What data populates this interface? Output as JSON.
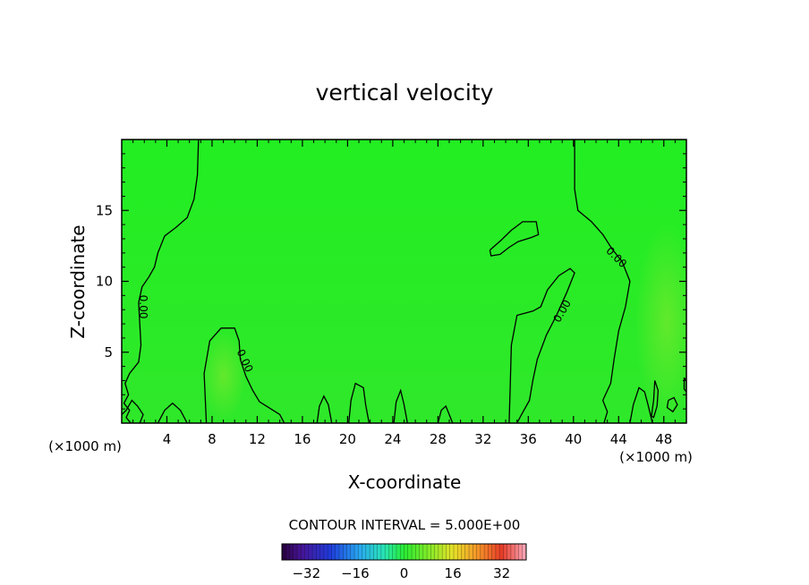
{
  "chart_data": {
    "type": "contour",
    "title": "vertical velocity",
    "xlabel": "X-coordinate",
    "ylabel": "Z-coordinate",
    "x_unit_left": "(×1000 m)",
    "x_unit_right": "(×1000 m)",
    "xlim": [
      0,
      50
    ],
    "ylim": [
      0,
      20
    ],
    "x_ticks": [
      "4",
      "8",
      "12",
      "16",
      "20",
      "24",
      "28",
      "32",
      "36",
      "40",
      "44",
      "48"
    ],
    "y_ticks": [
      "5",
      "10",
      "15"
    ],
    "contour_interval_text": "CONTOUR INTERVAL = 5.000E+00",
    "contour_labels": [
      "0.00",
      "0.00",
      "0.00",
      "0.00"
    ],
    "field_color": "#22ee22",
    "colorbar": {
      "range": [
        -40,
        40
      ],
      "tick_labels": [
        "-32",
        "-16",
        "0",
        "16",
        "32"
      ],
      "tick_values": [
        -32,
        -16,
        0,
        16,
        32
      ]
    },
    "zero_contours": [
      {
        "points": [
          [
            6.8,
            20
          ],
          [
            6.7,
            17.5
          ],
          [
            6.4,
            15.8
          ],
          [
            5.8,
            14.5
          ],
          [
            4.8,
            13.8
          ],
          [
            3.8,
            13.2
          ],
          [
            3.2,
            12
          ],
          [
            2.9,
            11
          ],
          [
            2.4,
            10.3
          ],
          [
            1.8,
            9.6
          ],
          [
            1.5,
            8.5
          ],
          [
            1.6,
            7
          ],
          [
            1.7,
            5.5
          ],
          [
            1.5,
            4.3
          ],
          [
            0.7,
            3.5
          ],
          [
            0.3,
            2.8
          ],
          [
            0.6,
            2.0
          ],
          [
            0.2,
            1.4
          ],
          [
            0.7,
            0.9
          ],
          [
            0.4,
            0.4
          ],
          [
            0.8,
            0
          ]
        ]
      },
      {
        "points": [
          [
            7.5,
            0
          ],
          [
            7.3,
            3.5
          ],
          [
            7.8,
            5.8
          ],
          [
            8.8,
            6.7
          ],
          [
            10.0,
            6.7
          ],
          [
            10.4,
            5.8
          ],
          [
            10.5,
            4.5
          ],
          [
            11.0,
            3.3
          ],
          [
            11.6,
            2.3
          ],
          [
            12.2,
            1.5
          ],
          [
            13.2,
            1.0
          ],
          [
            14.0,
            0.6
          ],
          [
            14.4,
            0
          ]
        ]
      },
      {
        "points": [
          [
            34.3,
            0
          ],
          [
            34.4,
            2.5
          ],
          [
            34.5,
            5.5
          ],
          [
            35.0,
            7.6
          ],
          [
            36.4,
            7.9
          ],
          [
            37.1,
            8.2
          ],
          [
            37.7,
            9.4
          ],
          [
            38.7,
            10.4
          ],
          [
            39.7,
            10.9
          ],
          [
            40.1,
            10.6
          ],
          [
            39.4,
            9.2
          ],
          [
            38.5,
            7.6
          ],
          [
            37.6,
            6.2
          ],
          [
            36.8,
            4.5
          ],
          [
            36.4,
            3.0
          ],
          [
            36.1,
            1.6
          ],
          [
            35.4,
            0.6
          ],
          [
            35.0,
            0
          ]
        ]
      },
      {
        "points": [
          [
            32.6,
            12.2
          ],
          [
            33.6,
            12.9
          ],
          [
            34.5,
            13.6
          ],
          [
            35.5,
            14.2
          ],
          [
            36.7,
            14.2
          ],
          [
            36.9,
            13.3
          ],
          [
            36.3,
            13.1
          ],
          [
            35.1,
            12.8
          ],
          [
            34.3,
            12.4
          ],
          [
            33.5,
            11.9
          ],
          [
            32.7,
            11.8
          ],
          [
            32.6,
            12.2
          ]
        ]
      },
      {
        "points": [
          [
            40.1,
            20
          ],
          [
            40.1,
            16.5
          ],
          [
            40.4,
            15.0
          ],
          [
            41.6,
            14.2
          ],
          [
            42.6,
            13.3
          ],
          [
            43.4,
            12.3
          ],
          [
            44.3,
            11.4
          ],
          [
            45.0,
            10.0
          ],
          [
            44.6,
            8.2
          ],
          [
            44.0,
            6.5
          ],
          [
            43.6,
            4.5
          ],
          [
            43.3,
            2.8
          ],
          [
            42.6,
            1.6
          ],
          [
            43.0,
            0.8
          ],
          [
            42.7,
            0
          ]
        ]
      },
      {
        "points": [
          [
            0,
            0.6
          ],
          [
            0.4,
            0.9
          ],
          [
            0.9,
            1.6
          ],
          [
            1.4,
            1.2
          ],
          [
            1.9,
            0.6
          ],
          [
            1.6,
            0
          ]
        ]
      },
      {
        "points": [
          [
            3.2,
            0
          ],
          [
            3.8,
            0.9
          ],
          [
            4.5,
            1.4
          ],
          [
            5.2,
            0.9
          ],
          [
            5.8,
            0
          ]
        ]
      },
      {
        "points": [
          [
            17.3,
            0
          ],
          [
            17.5,
            1.2
          ],
          [
            17.9,
            1.9
          ],
          [
            18.3,
            1.3
          ],
          [
            18.6,
            0
          ]
        ]
      },
      {
        "points": [
          [
            20.1,
            0
          ],
          [
            20.3,
            1.6
          ],
          [
            20.7,
            2.8
          ],
          [
            21.4,
            2.5
          ],
          [
            21.6,
            1.3
          ],
          [
            21.9,
            0
          ]
        ]
      },
      {
        "points": [
          [
            24.1,
            0
          ],
          [
            24.3,
            1.5
          ],
          [
            24.7,
            2.3
          ],
          [
            25.0,
            1.3
          ],
          [
            25.3,
            0
          ]
        ]
      },
      {
        "points": [
          [
            28.0,
            0
          ],
          [
            28.3,
            0.9
          ],
          [
            28.7,
            1.2
          ],
          [
            29.0,
            0.6
          ],
          [
            29.3,
            0
          ]
        ]
      },
      {
        "points": [
          [
            45.0,
            0
          ],
          [
            45.3,
            1.3
          ],
          [
            45.8,
            2.5
          ],
          [
            46.3,
            2.2
          ],
          [
            46.6,
            1.3
          ],
          [
            47.0,
            0
          ]
        ]
      },
      {
        "points": [
          [
            46.9,
            0.5
          ],
          [
            47.1,
            1.6
          ],
          [
            47.2,
            3.0
          ],
          [
            47.5,
            2.3
          ],
          [
            47.4,
            1.2
          ],
          [
            47.1,
            0.4
          ],
          [
            46.9,
            0.5
          ]
        ]
      },
      {
        "points": [
          [
            48.4,
            1.6
          ],
          [
            48.9,
            1.8
          ],
          [
            49.2,
            1.3
          ],
          [
            48.8,
            0.8
          ],
          [
            48.3,
            1.1
          ],
          [
            48.4,
            1.6
          ]
        ]
      },
      {
        "points": [
          [
            49.8,
            3.2
          ],
          [
            50,
            3.0
          ],
          [
            50,
            2.2
          ],
          [
            49.8,
            2.4
          ],
          [
            49.8,
            3.2
          ]
        ]
      }
    ]
  }
}
